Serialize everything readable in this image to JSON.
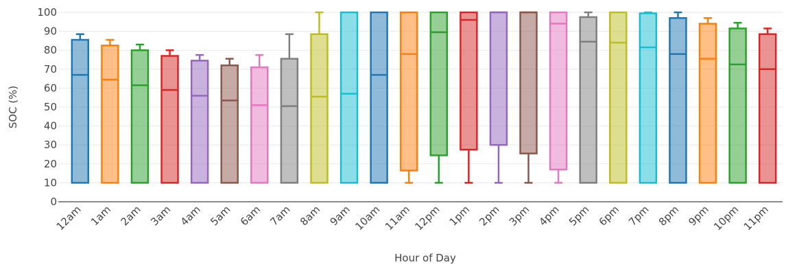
{
  "chart_data": {
    "type": "box",
    "title": "",
    "xlabel": "Hour of Day",
    "ylabel": "SOC (%)",
    "ylim": [
      0,
      100
    ],
    "yticks": [
      0,
      10,
      20,
      30,
      40,
      50,
      60,
      70,
      80,
      90,
      100
    ],
    "grid": true,
    "legend": "none",
    "categories": [
      "12am",
      "1am",
      "2am",
      "3am",
      "4am",
      "5am",
      "6am",
      "7am",
      "8am",
      "9am",
      "10am",
      "11am",
      "12pm",
      "1pm",
      "2pm",
      "3pm",
      "4pm",
      "5pm",
      "6pm",
      "7pm",
      "8pm",
      "9pm",
      "10pm",
      "11pm"
    ],
    "colors": [
      "#1f77b4",
      "#ff7f0e",
      "#2ca02c",
      "#d62728",
      "#9467bd",
      "#8c564b",
      "#e377c2",
      "#7f7f7f",
      "#bcbd22",
      "#17becf",
      "#1f77b4",
      "#ff7f0e",
      "#2ca02c",
      "#d62728",
      "#9467bd",
      "#8c564b",
      "#e377c2",
      "#7f7f7f",
      "#bcbd22",
      "#17becf",
      "#1f77b4",
      "#ff7f0e",
      "#2ca02c",
      "#d62728"
    ],
    "boxes": [
      {
        "min": 10,
        "q1": 10,
        "median": 67,
        "q3": 85.5,
        "max": 88.5
      },
      {
        "min": 10,
        "q1": 10,
        "median": 64.5,
        "q3": 82.5,
        "max": 85.5
      },
      {
        "min": 10,
        "q1": 10,
        "median": 61.5,
        "q3": 80,
        "max": 83
      },
      {
        "min": 10,
        "q1": 10,
        "median": 59,
        "q3": 77,
        "max": 80
      },
      {
        "min": 10,
        "q1": 10,
        "median": 56,
        "q3": 74.5,
        "max": 77.5
      },
      {
        "min": 10,
        "q1": 10,
        "median": 53.5,
        "q3": 72,
        "max": 75.5
      },
      {
        "min": 10,
        "q1": 10,
        "median": 51,
        "q3": 71,
        "max": 77.5
      },
      {
        "min": 10,
        "q1": 10,
        "median": 50.5,
        "q3": 75.5,
        "max": 88.5
      },
      {
        "min": 10,
        "q1": 10,
        "median": 55.5,
        "q3": 88.5,
        "max": 100
      },
      {
        "min": 10,
        "q1": 10,
        "median": 57,
        "q3": 100,
        "max": 100
      },
      {
        "min": 10,
        "q1": 10,
        "median": 67,
        "q3": 100,
        "max": 100
      },
      {
        "min": 10,
        "q1": 16.5,
        "median": 78,
        "q3": 100,
        "max": 100
      },
      {
        "min": 10,
        "q1": 24.5,
        "median": 89.5,
        "q3": 100,
        "max": 100
      },
      {
        "min": 10,
        "q1": 27.5,
        "median": 96,
        "q3": 100,
        "max": 100
      },
      {
        "min": 10,
        "q1": 30,
        "median": 100,
        "q3": 100,
        "max": 100
      },
      {
        "min": 10,
        "q1": 25.5,
        "median": 100,
        "q3": 100,
        "max": 100
      },
      {
        "min": 10,
        "q1": 17,
        "median": 94,
        "q3": 100,
        "max": 100
      },
      {
        "min": 10,
        "q1": 10,
        "median": 84.5,
        "q3": 97.5,
        "max": 100
      },
      {
        "min": 10,
        "q1": 10,
        "median": 84,
        "q3": 100,
        "max": 100
      },
      {
        "min": 10,
        "q1": 10,
        "median": 81.5,
        "q3": 99.5,
        "max": 100
      },
      {
        "min": 10,
        "q1": 10,
        "median": 78,
        "q3": 97,
        "max": 100
      },
      {
        "min": 10,
        "q1": 10,
        "median": 75.5,
        "q3": 94,
        "max": 97
      },
      {
        "min": 10,
        "q1": 10,
        "median": 72.5,
        "q3": 91.5,
        "max": 94.5
      },
      {
        "min": 10,
        "q1": 10,
        "median": 70,
        "q3": 88.5,
        "max": 91.5
      }
    ]
  }
}
